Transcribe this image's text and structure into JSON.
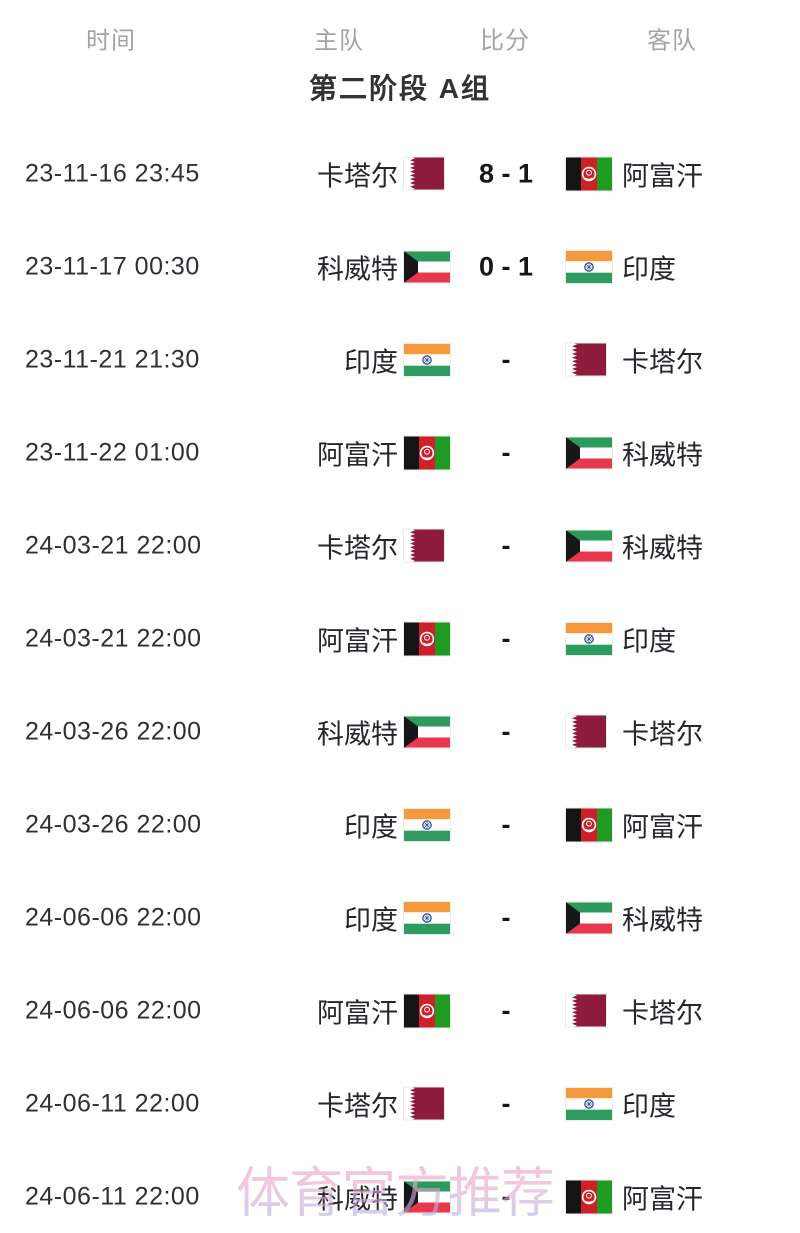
{
  "table_header": {
    "time": "时间",
    "home": "主队",
    "score": "比分",
    "away": "客队"
  },
  "section_title": "第二阶段 A组",
  "watermark": "体育官方推荐",
  "teams": {
    "qatar": {
      "name": "卡塔尔",
      "icon": "qatar-flag-icon"
    },
    "afghanistan": {
      "name": "阿富汗",
      "icon": "afghanistan-flag-icon"
    },
    "kuwait": {
      "name": "科威特",
      "icon": "kuwait-flag-icon"
    },
    "india": {
      "name": "印度",
      "icon": "india-flag-icon"
    }
  },
  "matches": [
    {
      "time": "23-11-16 23:45",
      "home": "qatar",
      "score": "8 - 1",
      "away": "afghanistan"
    },
    {
      "time": "23-11-17 00:30",
      "home": "kuwait",
      "score": "0 - 1",
      "away": "india"
    },
    {
      "time": "23-11-21 21:30",
      "home": "india",
      "score": "-",
      "away": "qatar"
    },
    {
      "time": "23-11-22 01:00",
      "home": "afghanistan",
      "score": "-",
      "away": "kuwait"
    },
    {
      "time": "24-03-21 22:00",
      "home": "qatar",
      "score": "-",
      "away": "kuwait"
    },
    {
      "time": "24-03-21 22:00",
      "home": "afghanistan",
      "score": "-",
      "away": "india"
    },
    {
      "time": "24-03-26 22:00",
      "home": "kuwait",
      "score": "-",
      "away": "qatar"
    },
    {
      "time": "24-03-26 22:00",
      "home": "india",
      "score": "-",
      "away": "afghanistan"
    },
    {
      "time": "24-06-06 22:00",
      "home": "india",
      "score": "-",
      "away": "kuwait"
    },
    {
      "time": "24-06-06 22:00",
      "home": "afghanistan",
      "score": "-",
      "away": "qatar"
    },
    {
      "time": "24-06-11 22:00",
      "home": "qatar",
      "score": "-",
      "away": "india"
    },
    {
      "time": "24-06-11 22:00",
      "home": "kuwait",
      "score": "-",
      "away": "afghanistan"
    }
  ],
  "colors": {
    "qatar_maroon": "#8d1b3d",
    "kuwait_green": "#2d9a5c",
    "kuwait_red": "#e8384f",
    "kuwait_black": "#17171a",
    "india_saffron": "#f6993d",
    "india_white": "#ffffff",
    "india_green": "#2e9b5f",
    "india_navy": "#3a55a4",
    "afghan_black": "#141414",
    "afghan_red": "#ce2029",
    "afghan_green": "#1e9b20",
    "header_gray": "#a3a3a8",
    "title_dark": "#333333",
    "time_text": "#2f2f36",
    "team_text": "#26262c",
    "score_text": "#16161a",
    "watermark_pink": "#ee9ec4",
    "watermark_blue": "#a9b4e6"
  }
}
